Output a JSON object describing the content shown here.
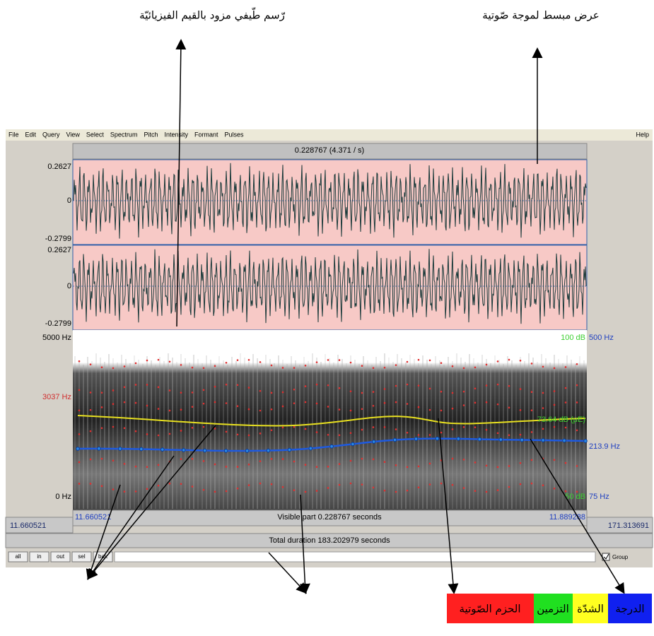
{
  "annotations": {
    "spectrogram": "رّسم طّيفي مزود بالقيم الفيزيائيّة",
    "waveform": "عرض مبسط لموجة صّوتية",
    "legend": [
      "الحزم الصّوتية",
      "التزمين",
      "الشدّة",
      "الدرجة"
    ]
  },
  "menu": [
    "File",
    "Edit",
    "Query",
    "View",
    "Select",
    "Spectrum",
    "Pitch",
    "Intensity",
    "Formant",
    "Pulses"
  ],
  "help": "Help",
  "header": "0.228767 (4.371 / s)",
  "waveform_labels": {
    "top": "0.2627",
    "zero": "0",
    "bottom": "-0.2799"
  },
  "spectrogram_labels": {
    "freq_top": "5000 Hz",
    "formant": "3037 Hz",
    "freq_bottom": "0 Hz",
    "db_top": "100 dB",
    "pitch_top": "500 Hz",
    "intensity": "73.64 dB (μE)",
    "pitch": "213.9 Hz",
    "db_bottom": "50 dB",
    "pitch_bottom": "75 Hz"
  },
  "time_row": {
    "left": "11.660521",
    "visible_start": "11.660521",
    "visible": "Visible part 0.228767 seconds",
    "visible_end": "11.889288",
    "right": "171.313691"
  },
  "total": "Total duration 183.202979 seconds",
  "buttons": [
    "all",
    "in",
    "out",
    "sel",
    "bak"
  ],
  "group": "Group"
}
